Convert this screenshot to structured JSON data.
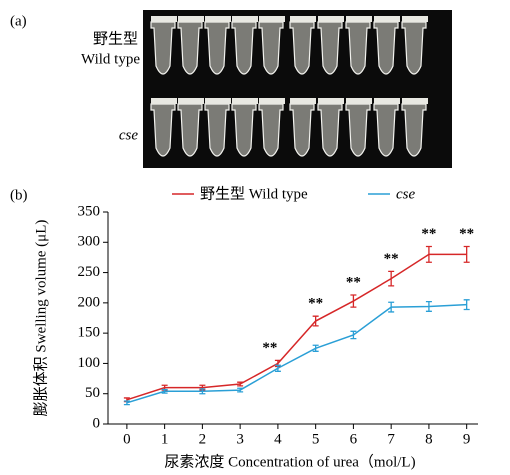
{
  "panel_a": {
    "label": "(a)",
    "row1_label_zh": "野生型",
    "row1_label_en": "Wild type",
    "row2_label": "cse"
  },
  "chart_data": {
    "type": "line",
    "panel_label": "(b)",
    "x_label": "尿素浓度 Concentration of urea（mol/L)",
    "y_label": "膨胀体积 Swelling volume (μL)",
    "x": [
      0,
      1,
      2,
      3,
      4,
      5,
      6,
      7,
      8,
      9
    ],
    "xlim": [
      -0.5,
      9.3
    ],
    "xticks": [
      0,
      1,
      2,
      3,
      4,
      5,
      6,
      7,
      8,
      9
    ],
    "ylim": [
      0,
      350
    ],
    "yticks": [
      0,
      50,
      100,
      150,
      200,
      250,
      300,
      350
    ],
    "series": [
      {
        "name": "野生型 Wild type",
        "color": "#d62728",
        "values": [
          40,
          60,
          60,
          66,
          100,
          170,
          203,
          240,
          280,
          280
        ],
        "errors": [
          3,
          4,
          4,
          3,
          5,
          8,
          10,
          12,
          13,
          13
        ]
      },
      {
        "name": "cse",
        "color": "#2a9fd6",
        "values": [
          35,
          54,
          54,
          56,
          92,
          125,
          147,
          193,
          194,
          197
        ],
        "errors": [
          3,
          3,
          4,
          3,
          5,
          5,
          6,
          8,
          8,
          8
        ]
      }
    ],
    "annotations": [
      {
        "x": 4,
        "text": "**"
      },
      {
        "x": 5,
        "text": "**"
      },
      {
        "x": 6,
        "text": "**"
      },
      {
        "x": 7,
        "text": "**"
      },
      {
        "x": 8,
        "text": "**"
      },
      {
        "x": 9,
        "text": "**"
      }
    ],
    "legend": "top"
  }
}
